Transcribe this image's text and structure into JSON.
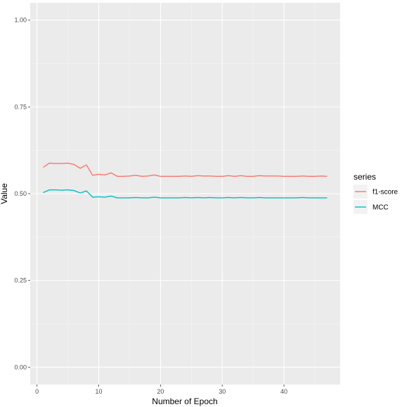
{
  "chart_data": {
    "type": "line",
    "title": "",
    "xlabel": "Number of Epoch",
    "ylabel": "Value",
    "xlim": [
      -1.1,
      49.1
    ],
    "ylim": [
      -0.05,
      1.05
    ],
    "x_ticks": [
      0,
      10,
      20,
      30,
      40
    ],
    "y_ticks": [
      0.0,
      0.25,
      0.5,
      0.75,
      1.0
    ],
    "y_tick_labels": [
      "0.00",
      "0.25",
      "0.50",
      "0.75",
      "1.00"
    ],
    "grid": true,
    "panel_background": "#ebebeb",
    "legend": {
      "title": "series",
      "position": "right"
    },
    "x": [
      1,
      2,
      3,
      4,
      5,
      6,
      7,
      8,
      9,
      10,
      11,
      12,
      13,
      14,
      15,
      16,
      17,
      18,
      19,
      20,
      21,
      22,
      23,
      24,
      25,
      26,
      27,
      28,
      29,
      30,
      31,
      32,
      33,
      34,
      35,
      36,
      37,
      38,
      39,
      40,
      41,
      42,
      43,
      44,
      45,
      46,
      47
    ],
    "series": [
      {
        "name": "f1-score",
        "color": "#f8766d",
        "values": [
          0.576,
          0.588,
          0.587,
          0.587,
          0.588,
          0.584,
          0.573,
          0.583,
          0.553,
          0.556,
          0.554,
          0.56,
          0.55,
          0.55,
          0.551,
          0.553,
          0.55,
          0.551,
          0.554,
          0.55,
          0.55,
          0.55,
          0.55,
          0.551,
          0.55,
          0.552,
          0.551,
          0.551,
          0.55,
          0.55,
          0.552,
          0.55,
          0.552,
          0.55,
          0.55,
          0.552,
          0.551,
          0.551,
          0.551,
          0.55,
          0.55,
          0.55,
          0.551,
          0.55,
          0.55,
          0.551,
          0.55
        ]
      },
      {
        "name": "MCC",
        "color": "#00bfc4",
        "values": [
          0.503,
          0.511,
          0.511,
          0.51,
          0.511,
          0.509,
          0.502,
          0.508,
          0.49,
          0.491,
          0.49,
          0.493,
          0.488,
          0.488,
          0.488,
          0.489,
          0.488,
          0.488,
          0.49,
          0.488,
          0.488,
          0.488,
          0.488,
          0.489,
          0.488,
          0.489,
          0.488,
          0.489,
          0.488,
          0.488,
          0.489,
          0.488,
          0.489,
          0.488,
          0.488,
          0.489,
          0.488,
          0.488,
          0.488,
          0.488,
          0.488,
          0.488,
          0.489,
          0.488,
          0.488,
          0.488,
          0.488
        ]
      }
    ]
  }
}
